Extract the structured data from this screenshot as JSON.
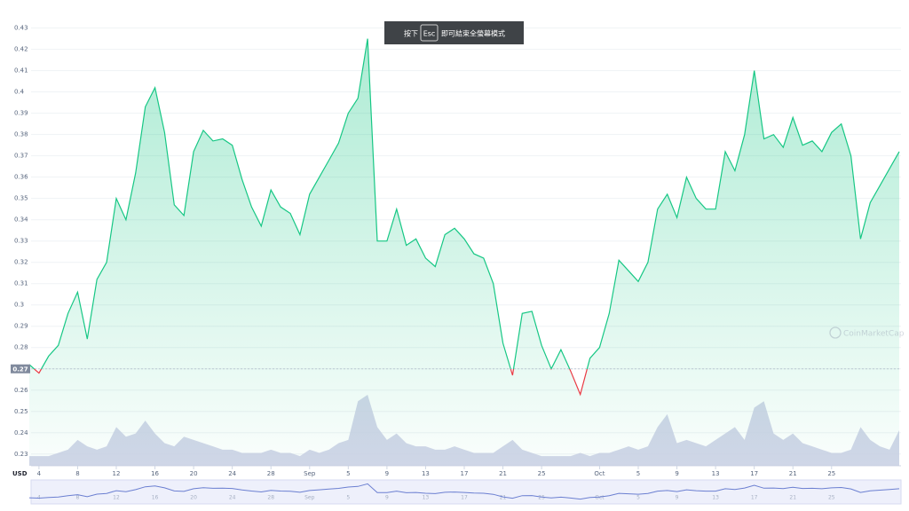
{
  "chart_data": {
    "type": "line",
    "banner": {
      "before": "按下",
      "key": "Esc",
      "after": "即可結束全螢幕模式"
    },
    "watermark": "CoinMarketCap",
    "currency": "USD",
    "price_marker": 0.27,
    "up_color": "#16c784",
    "down_color": "#ea3943",
    "volume_color": "#c8cce3",
    "x": [
      "08-03",
      "08-04",
      "08-05",
      "08-06",
      "08-07",
      "08-08",
      "08-09",
      "08-10",
      "08-11",
      "08-12",
      "08-13",
      "08-14",
      "08-15",
      "08-16",
      "08-17",
      "08-18",
      "08-19",
      "08-20",
      "08-21",
      "08-22",
      "08-23",
      "08-24",
      "08-25",
      "08-26",
      "08-27",
      "08-28",
      "08-29",
      "08-30",
      "08-31",
      "09-01",
      "09-02",
      "09-03",
      "09-04",
      "09-05",
      "09-06",
      "09-07",
      "09-08",
      "09-09",
      "09-10",
      "09-11",
      "09-12",
      "09-13",
      "09-14",
      "09-15",
      "09-16",
      "09-17",
      "09-18",
      "09-19",
      "09-20",
      "09-21",
      "09-22",
      "09-23",
      "09-24",
      "09-25",
      "09-26",
      "09-27",
      "09-28",
      "09-29",
      "09-30",
      "10-01",
      "10-02",
      "10-03",
      "10-04",
      "10-05",
      "10-06",
      "10-07",
      "10-08",
      "10-09",
      "10-10",
      "10-11",
      "10-12",
      "10-13",
      "10-14",
      "10-15",
      "10-16",
      "10-17",
      "10-18",
      "10-19",
      "10-20",
      "10-21",
      "10-22",
      "10-23",
      "10-24",
      "10-25",
      "10-26",
      "10-27",
      "10-28",
      "10-29",
      "10-30",
      "10-31",
      "11-01"
    ],
    "series": [
      {
        "name": "Price",
        "values": [
          0.272,
          0.268,
          0.276,
          0.281,
          0.296,
          0.306,
          0.284,
          0.312,
          0.32,
          0.35,
          0.34,
          0.362,
          0.393,
          0.402,
          0.381,
          0.347,
          0.342,
          0.372,
          0.382,
          0.377,
          0.378,
          0.375,
          0.359,
          0.346,
          0.337,
          0.354,
          0.346,
          0.343,
          0.333,
          0.352,
          0.36,
          0.368,
          0.376,
          0.39,
          0.397,
          0.425,
          0.33,
          0.33,
          0.345,
          0.328,
          0.331,
          0.322,
          0.318,
          0.333,
          0.336,
          0.331,
          0.324,
          0.322,
          0.31,
          0.282,
          0.267,
          0.296,
          0.297,
          0.281,
          0.27,
          0.279,
          0.269,
          0.258,
          0.275,
          0.28,
          0.296,
          0.321,
          0.316,
          0.311,
          0.32,
          0.345,
          0.352,
          0.341,
          0.36,
          0.35,
          0.345,
          0.345,
          0.372,
          0.363,
          0.38,
          0.41,
          0.378,
          0.38,
          0.374,
          0.388,
          0.375,
          0.377,
          0.372,
          0.381,
          0.385,
          0.37,
          0.331,
          0.348,
          0.356,
          0.364,
          0.372
        ]
      },
      {
        "name": "Volume",
        "values": [
          3,
          3,
          3,
          4,
          5,
          8,
          6,
          5,
          6,
          12,
          9,
          10,
          14,
          10,
          7,
          6,
          9,
          8,
          7,
          6,
          5,
          5,
          4,
          4,
          4,
          5,
          4,
          4,
          3,
          5,
          4,
          5,
          7,
          8,
          20,
          22,
          12,
          8,
          10,
          7,
          6,
          6,
          5,
          5,
          6,
          5,
          4,
          4,
          4,
          6,
          8,
          5,
          4,
          3,
          3,
          3,
          3,
          4,
          3,
          4,
          4,
          5,
          6,
          5,
          6,
          12,
          16,
          7,
          8,
          7,
          6,
          8,
          10,
          12,
          8,
          18,
          20,
          10,
          8,
          10,
          7,
          6,
          5,
          4,
          4,
          5,
          12,
          8,
          6,
          5,
          11
        ]
      }
    ],
    "ylim": [
      0.2245,
      0.439
    ],
    "yticks": [
      0.23,
      0.24,
      0.25,
      0.26,
      0.27,
      0.28,
      0.29,
      0.3,
      0.31,
      0.32,
      0.33,
      0.34,
      0.35,
      0.36,
      0.37,
      0.38,
      0.39,
      0.4,
      0.41,
      0.42,
      0.43
    ],
    "xticks": [
      {
        "value": "08-04",
        "label": "4"
      },
      {
        "value": "08-08",
        "label": "8"
      },
      {
        "value": "08-12",
        "label": "12"
      },
      {
        "value": "08-16",
        "label": "16"
      },
      {
        "value": "08-20",
        "label": "20"
      },
      {
        "value": "08-24",
        "label": "24"
      },
      {
        "value": "08-28",
        "label": "28"
      },
      {
        "value": "09-01",
        "label": "Sep"
      },
      {
        "value": "09-05",
        "label": "5"
      },
      {
        "value": "09-09",
        "label": "9"
      },
      {
        "value": "09-13",
        "label": "13"
      },
      {
        "value": "09-17",
        "label": "17"
      },
      {
        "value": "09-21",
        "label": "21"
      },
      {
        "value": "09-25",
        "label": "25"
      },
      {
        "value": "10-01",
        "label": "Oct"
      },
      {
        "value": "10-05",
        "label": "5"
      },
      {
        "value": "10-09",
        "label": "9"
      },
      {
        "value": "10-13",
        "label": "13"
      },
      {
        "value": "10-17",
        "label": "17"
      },
      {
        "value": "10-21",
        "label": "21"
      },
      {
        "value": "10-25",
        "label": "25"
      }
    ],
    "grid": true
  }
}
